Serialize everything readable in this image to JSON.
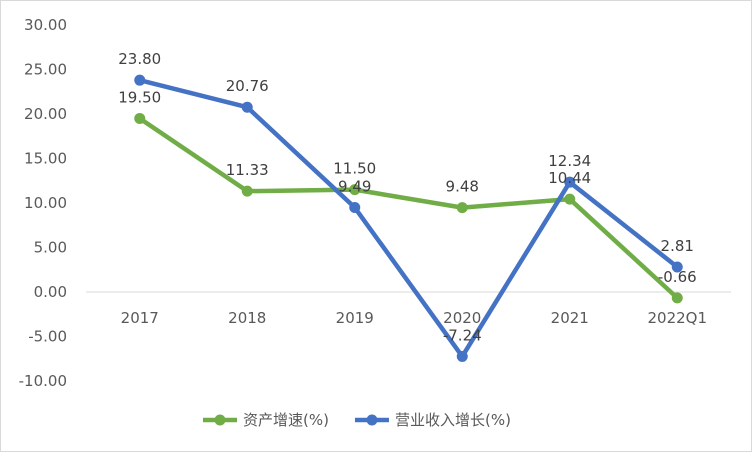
{
  "chart_data": {
    "type": "line",
    "title": "",
    "xlabel": "",
    "ylabel": "",
    "categories": [
      "2017",
      "2018",
      "2019",
      "2020",
      "2021",
      "2022Q1"
    ],
    "ylim": [
      -10,
      30
    ],
    "yticks": [
      -10,
      -5,
      0,
      5,
      10,
      15,
      20,
      25,
      30
    ],
    "ytick_labels": [
      "-10.00",
      "-5.00",
      "0.00",
      "5.00",
      "10.00",
      "15.00",
      "20.00",
      "25.00",
      "30.00"
    ],
    "grid": false,
    "legend_position": "bottom",
    "series": [
      {
        "name": "资产增速(%)",
        "color": "#70ad47",
        "values": [
          19.5,
          11.33,
          11.5,
          9.48,
          10.44,
          -0.66
        ],
        "labels": [
          "19.50",
          "11.33",
          "11.50",
          "9.48",
          "10.44",
          "-0.66"
        ]
      },
      {
        "name": "营业收入增长(%)",
        "color": "#4472c4",
        "values": [
          23.8,
          20.76,
          9.49,
          -7.24,
          12.34,
          2.81
        ],
        "labels": [
          "23.80",
          "20.76",
          "9.49",
          "-7.24",
          "12.34",
          "2.81"
        ]
      }
    ]
  }
}
